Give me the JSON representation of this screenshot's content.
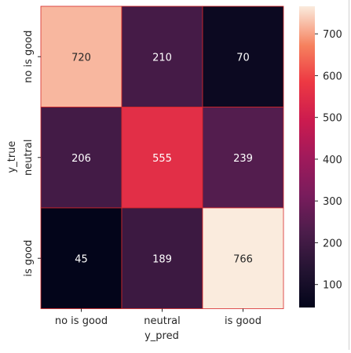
{
  "chart_data": {
    "type": "heatmap",
    "title": "",
    "xlabel": "y_pred",
    "ylabel": "y_true",
    "x_categories": [
      "no is good",
      "neutral",
      "is good"
    ],
    "y_categories": [
      "no is good",
      "neutral",
      "is good"
    ],
    "values": [
      [
        720,
        210,
        70
      ],
      [
        206,
        555,
        239
      ],
      [
        45,
        189,
        766
      ]
    ],
    "colorbar": {
      "ticks": [
        100,
        200,
        300,
        400,
        500,
        600,
        700
      ],
      "range": [
        45,
        766
      ],
      "colormap": "rocket"
    },
    "cell_border_color": "#d62728",
    "grid": false
  }
}
